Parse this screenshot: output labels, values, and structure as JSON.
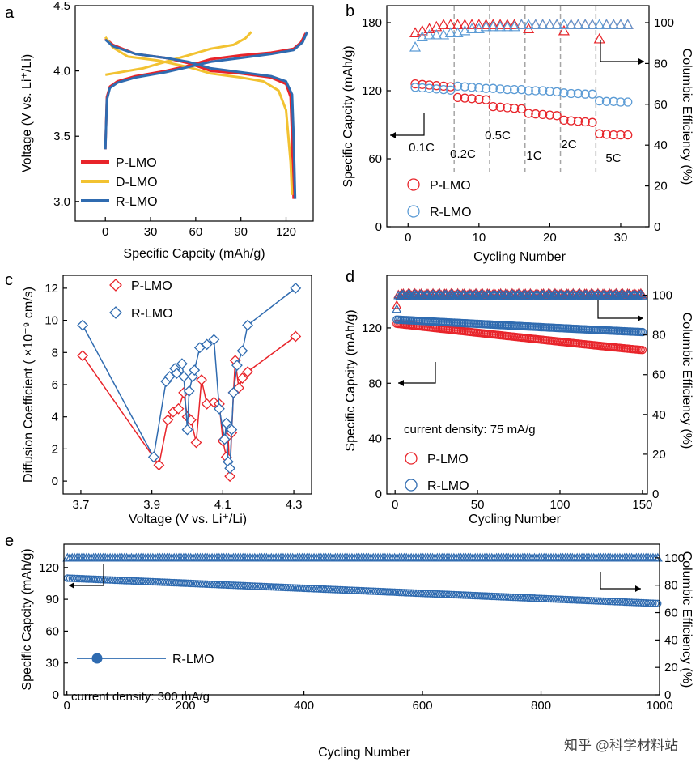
{
  "colors": {
    "red": "#e8242a",
    "blue": "#2f6bb0",
    "lightblue": "#5b9bd5",
    "yellow": "#f2c231",
    "gray": "#a6a6a6",
    "black": "#000000"
  },
  "watermark": "知乎 @科学材料站",
  "chart_data": [
    {
      "panel": "a",
      "type": "line",
      "xlabel": "Specific Capcity (mAh/g)",
      "ylabel": "Voltage (V vs. Li⁺/Li)",
      "xlim": [
        -20,
        138
      ],
      "ylim": [
        2.85,
        4.5
      ],
      "xticks": [
        0,
        30,
        60,
        90,
        120
      ],
      "yticks": [
        3.0,
        3.5,
        4.0,
        4.5
      ],
      "ytick_labels": [
        "3.0",
        "3.5",
        "4.0",
        "4.5"
      ],
      "legend_placement": "bottom-left",
      "series": [
        {
          "name": "P-LMO",
          "color": "red",
          "charge": [
            [
              0,
              3.4
            ],
            [
              1,
              3.8
            ],
            [
              3,
              3.88
            ],
            [
              8,
              3.92
            ],
            [
              20,
              3.96
            ],
            [
              40,
              4.0
            ],
            [
              55,
              4.04
            ],
            [
              70,
              4.09
            ],
            [
              90,
              4.12
            ],
            [
              110,
              4.14
            ],
            [
              125,
              4.17
            ],
            [
              130,
              4.22
            ],
            [
              133,
              4.29
            ]
          ],
          "discharge": [
            [
              0,
              4.25
            ],
            [
              5,
              4.2
            ],
            [
              20,
              4.13
            ],
            [
              40,
              4.1
            ],
            [
              55,
              4.06
            ],
            [
              70,
              4.0
            ],
            [
              90,
              3.98
            ],
            [
              110,
              3.95
            ],
            [
              120,
              3.9
            ],
            [
              123,
              3.8
            ],
            [
              124,
              3.5
            ],
            [
              125,
              3.02
            ]
          ]
        },
        {
          "name": "D-LMO",
          "color": "yellow",
          "charge": [
            [
              0,
              3.97
            ],
            [
              10,
              3.99
            ],
            [
              25,
              4.02
            ],
            [
              40,
              4.07
            ],
            [
              55,
              4.12
            ],
            [
              70,
              4.17
            ],
            [
              85,
              4.2
            ],
            [
              93,
              4.25
            ],
            [
              97,
              4.3
            ]
          ],
          "discharge": [
            [
              0,
              4.26
            ],
            [
              5,
              4.18
            ],
            [
              15,
              4.11
            ],
            [
              35,
              4.08
            ],
            [
              55,
              4.03
            ],
            [
              70,
              3.98
            ],
            [
              90,
              3.95
            ],
            [
              105,
              3.92
            ],
            [
              115,
              3.85
            ],
            [
              120,
              3.7
            ],
            [
              123,
              3.3
            ],
            [
              124,
              3.05
            ]
          ]
        },
        {
          "name": "R-LMO",
          "color": "blue",
          "charge": [
            [
              0,
              3.4
            ],
            [
              1,
              3.78
            ],
            [
              3,
              3.87
            ],
            [
              8,
              3.91
            ],
            [
              20,
              3.95
            ],
            [
              40,
              3.99
            ],
            [
              55,
              4.03
            ],
            [
              70,
              4.07
            ],
            [
              90,
              4.1
            ],
            [
              110,
              4.13
            ],
            [
              125,
              4.16
            ],
            [
              131,
              4.22
            ],
            [
              134,
              4.3
            ]
          ],
          "discharge": [
            [
              0,
              4.24
            ],
            [
              5,
              4.19
            ],
            [
              20,
              4.13
            ],
            [
              40,
              4.1
            ],
            [
              55,
              4.07
            ],
            [
              70,
              4.02
            ],
            [
              90,
              3.99
            ],
            [
              110,
              3.96
            ],
            [
              120,
              3.92
            ],
            [
              124,
              3.82
            ],
            [
              125,
              3.5
            ],
            [
              126,
              3.02
            ]
          ]
        }
      ]
    },
    {
      "panel": "b",
      "type": "scatter",
      "xlabel": "Cycling Number",
      "ylabel": "Specific Capcity (mAh/g)",
      "ylabel_right": "Columbic Efficiency (%)",
      "xlim": [
        -3,
        34
      ],
      "ylim": [
        0,
        195
      ],
      "ylim_right": [
        0,
        108.33
      ],
      "xticks": [
        0,
        10,
        20,
        30
      ],
      "yticks": [
        0,
        60,
        120,
        180
      ],
      "yticks_right": [
        0,
        20,
        40,
        60,
        80,
        100
      ],
      "rate_labels": [
        "0.1C",
        "0.2C",
        "0.5C",
        "1C",
        "2C",
        "5C"
      ],
      "rate_dividers": [
        6.5,
        11.5,
        16.5,
        21.5,
        26.5
      ],
      "legend_placement": "bottom-left",
      "series": [
        {
          "name": "P-LMO",
          "color": "red",
          "capacity": [
            126,
            125.5,
            125,
            124.5,
            124,
            123.5,
            114,
            113.5,
            113,
            112.5,
            112,
            106,
            105.5,
            105,
            104.5,
            104,
            100,
            99.5,
            99,
            98.5,
            98,
            94,
            93.5,
            93,
            92.5,
            92,
            82,
            81.5,
            81,
            81,
            81
          ],
          "efficiency": [
            95,
            96,
            97,
            98,
            99,
            99,
            99,
            99,
            99,
            99,
            99,
            99,
            99,
            99,
            99,
            99,
            97,
            99,
            99,
            99,
            99,
            96,
            99,
            99,
            99,
            99,
            92,
            99,
            99,
            99,
            99
          ]
        },
        {
          "name": "R-LMO",
          "color": "lightblue",
          "capacity": [
            123,
            122.5,
            122,
            121.5,
            121,
            120.5,
            124,
            123.5,
            123,
            122.5,
            122,
            122,
            121.5,
            121,
            121,
            121,
            120,
            120,
            120,
            119.5,
            119,
            118,
            117.5,
            117.5,
            117,
            117,
            111,
            110.5,
            110.5,
            110,
            110
          ],
          "efficiency": [
            88,
            93,
            94,
            94,
            94,
            95,
            95,
            96,
            97,
            97,
            98,
            98,
            98,
            98,
            98,
            99,
            99,
            99,
            99,
            99,
            99,
            99,
            99,
            99,
            99,
            99,
            99,
            99,
            99,
            99,
            99
          ]
        }
      ]
    },
    {
      "panel": "c",
      "type": "line",
      "xlabel": "Voltage (V vs. Li⁺/Li)",
      "ylabel": "Diffusion Coefficient ( ×10⁻⁹ cm/s)",
      "xlim": [
        3.65,
        4.35
      ],
      "ylim": [
        -0.8,
        12.8
      ],
      "xticks": [
        3.7,
        3.9,
        4.1,
        4.3
      ],
      "yticks": [
        0,
        2,
        4,
        6,
        8,
        10,
        12
      ],
      "legend_placement": "top",
      "series": [
        {
          "name": "P-LMO",
          "color": "red",
          "x": [
            3.705,
            3.92,
            3.945,
            3.96,
            3.975,
            3.99,
            4.0,
            4.01,
            4.025,
            4.04,
            4.055,
            4.075,
            4.09,
            4.1,
            4.11,
            4.115,
            4.12,
            4.125,
            4.13,
            4.135,
            4.145,
            4.155,
            4.17,
            4.305
          ],
          "y": [
            7.8,
            1.0,
            3.8,
            4.3,
            4.5,
            5.5,
            4.0,
            3.8,
            2.4,
            6.3,
            4.8,
            4.9,
            4.8,
            2.5,
            1.5,
            2.8,
            0.3,
            3.0,
            5.5,
            7.5,
            5.8,
            6.4,
            6.8,
            9.0
          ]
        },
        {
          "name": "R-LMO",
          "color": "blue",
          "x": [
            3.705,
            3.905,
            3.94,
            3.95,
            3.965,
            3.97,
            3.985,
            3.99,
            4.0,
            4.005,
            4.015,
            4.02,
            4.035,
            4.055,
            4.075,
            4.09,
            4.105,
            4.11,
            4.115,
            4.12,
            4.125,
            4.13,
            4.14,
            4.155,
            4.17,
            4.305
          ],
          "y": [
            9.7,
            1.5,
            6.2,
            6.5,
            7.0,
            6.7,
            7.3,
            6.5,
            3.2,
            5.6,
            6.5,
            6.9,
            8.3,
            8.5,
            8.8,
            4.5,
            2.6,
            3.6,
            1.2,
            0.8,
            3.2,
            5.5,
            7.2,
            8.1,
            9.7,
            12.0
          ]
        }
      ]
    },
    {
      "panel": "d",
      "type": "scatter",
      "xlabel": "Cycling Number",
      "ylabel": "Specific Capcity (mAh/g)",
      "ylabel_right": "Columbic Efficiency (%)",
      "annotation": "current density: 75 mA/g",
      "xlim": [
        -5,
        153
      ],
      "ylim": [
        0,
        158
      ],
      "ylim_right": [
        0,
        110
      ],
      "xticks": [
        0,
        50,
        100,
        150
      ],
      "yticks": [
        0,
        40,
        80,
        120
      ],
      "yticks_right": [
        0,
        20,
        40,
        60,
        80,
        100
      ],
      "legend_placement": "bottom-left",
      "series": [
        {
          "name": "P-LMO",
          "color": "red",
          "n": 150,
          "capacity_start": 123,
          "capacity_end": 104,
          "efficiency": 100.5,
          "efficiency_first": 95
        },
        {
          "name": "R-LMO",
          "color": "blue",
          "n": 150,
          "capacity_start": 126,
          "capacity_end": 117,
          "efficiency": 100,
          "efficiency_first": 93
        }
      ]
    },
    {
      "panel": "e",
      "type": "scatter",
      "xlabel": "Cycling Number",
      "ylabel": "Specific Capcity (mAh/g)",
      "ylabel_right": "Columbic Efficiency (%)",
      "annotation": "current density: 300 mA/g",
      "xlim": [
        -5,
        1000
      ],
      "ylim": [
        0,
        142
      ],
      "ylim_right": [
        0,
        110
      ],
      "xticks": [
        0,
        200,
        400,
        600,
        800,
        1000
      ],
      "yticks": [
        0,
        30,
        60,
        90,
        120
      ],
      "yticks_right": [
        0,
        20,
        40,
        60,
        80,
        100
      ],
      "legend_placement": "middle-left",
      "series": [
        {
          "name": "R-LMO",
          "color": "blue",
          "n": 1000,
          "capacity_start": 110,
          "capacity_end": 86,
          "efficiency": 100
        }
      ]
    }
  ]
}
